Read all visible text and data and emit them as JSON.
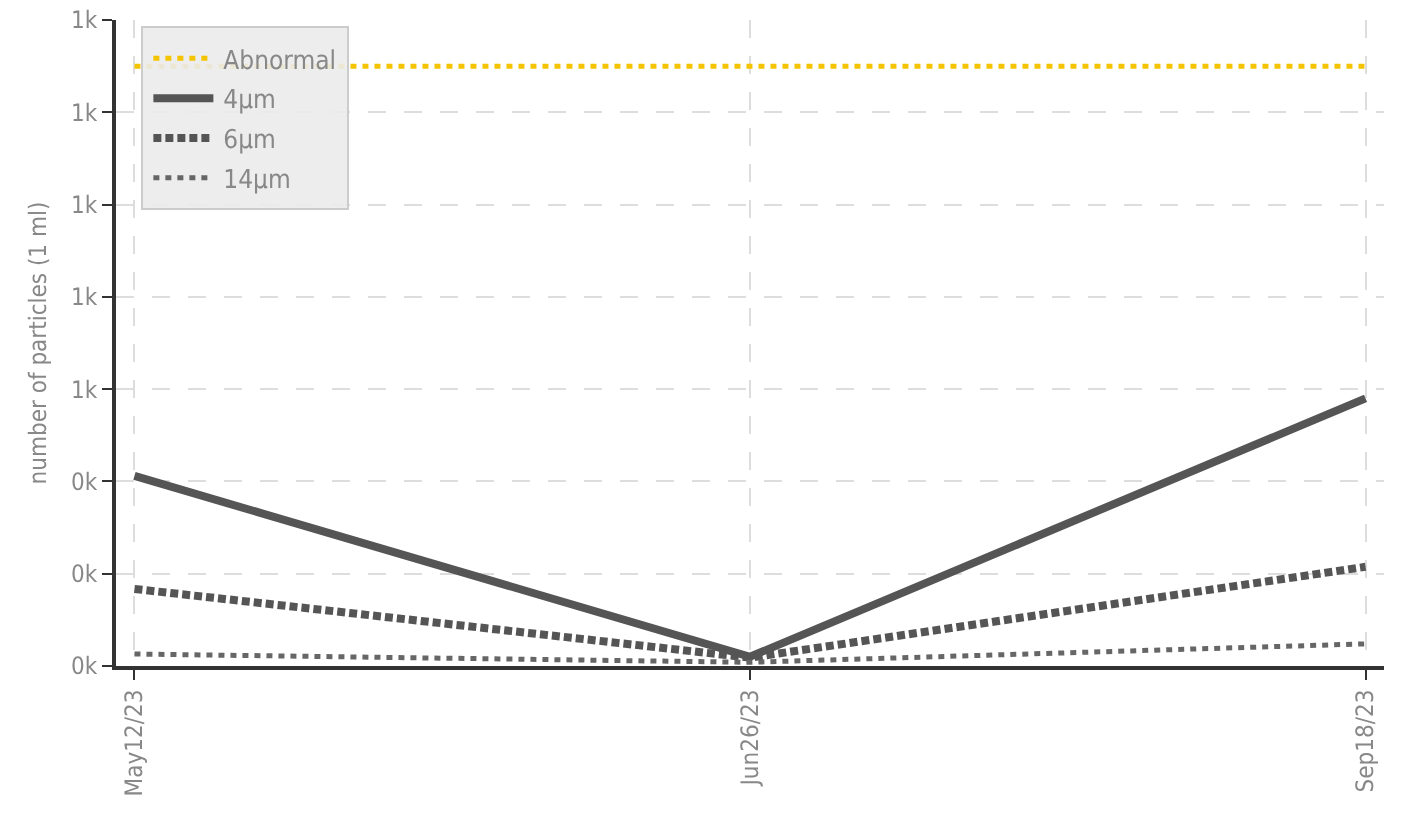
{
  "chart_data": {
    "type": "line",
    "ylabel": "number of particles (1 ml)",
    "categories": [
      "May12/23",
      "Jun26/23",
      "Sep18/23"
    ],
    "ylim": [
      0,
      1400
    ],
    "yticks": [
      {
        "value": 0,
        "label": "0k"
      },
      {
        "value": 200,
        "label": "0k"
      },
      {
        "value": 400,
        "label": "0k"
      },
      {
        "value": 600,
        "label": "1k"
      },
      {
        "value": 800,
        "label": "1k"
      },
      {
        "value": 1000,
        "label": "1k"
      },
      {
        "value": 1200,
        "label": "1k"
      },
      {
        "value": 1400,
        "label": "1k"
      }
    ],
    "grid": true,
    "legend": "top left",
    "marker": "none",
    "series": [
      {
        "name": "Abnormal",
        "color": "#f5c400",
        "line_style": "dotted",
        "values": [
          1300,
          1300,
          1300
        ]
      },
      {
        "name": "4μm",
        "color": "#555555",
        "line_style": "solid",
        "values": [
          412,
          20,
          580
        ]
      },
      {
        "name": "6μm",
        "color": "#555555",
        "line_style": "dashed",
        "values": [
          167,
          18,
          215
        ]
      },
      {
        "name": "14μm",
        "color": "#666666",
        "line_style": "dotted",
        "values": [
          26,
          8,
          48
        ]
      }
    ]
  }
}
